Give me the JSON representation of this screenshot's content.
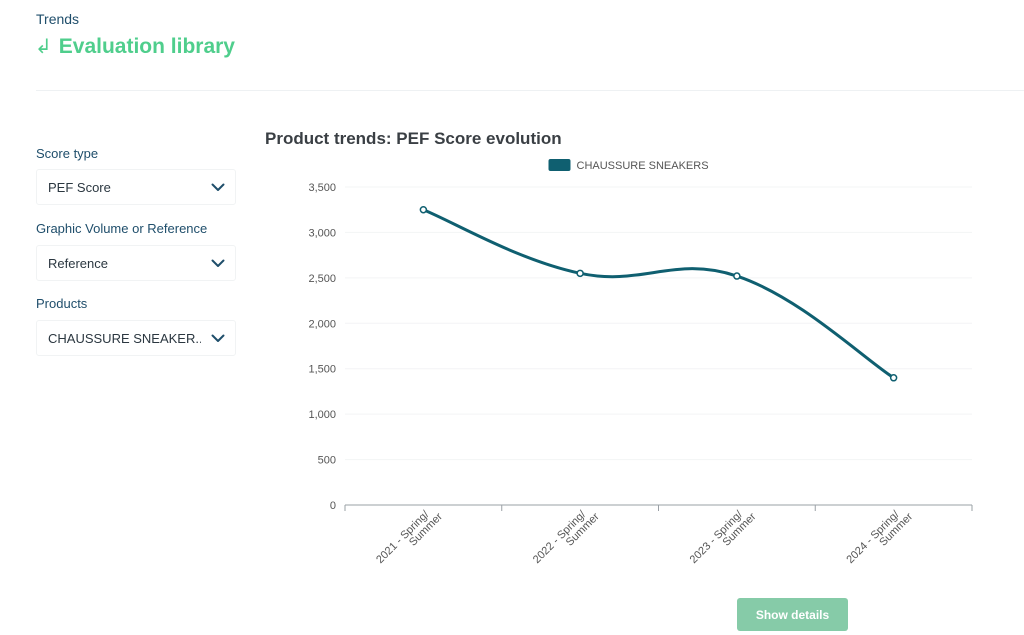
{
  "header": {
    "breadcrumb": "Trends",
    "back_link_label": "Evaluation library",
    "back_icon": "return-arrow-icon"
  },
  "filters": [
    {
      "label": "Score type",
      "value": "PEF Score"
    },
    {
      "label": "Graphic Volume or Reference",
      "value": "Reference"
    },
    {
      "label": "Products",
      "value": "CHAUSSURE SNEAKER..."
    }
  ],
  "chart_data": {
    "type": "line",
    "title": "Product trends: PEF Score evolution",
    "categories": [
      "2021 - Spring/Summer",
      "2022 - Spring/Summer",
      "2023 - Spring/Summer",
      "2024 - Spring/Summer"
    ],
    "series": [
      {
        "name": "CHAUSSURE SNEAKERS",
        "color": "#0f5f70",
        "values": [
          3250,
          2550,
          2520,
          1400
        ]
      }
    ],
    "yticks": [
      0,
      500,
      1000,
      1500,
      2000,
      2500,
      3000,
      3500
    ],
    "ytick_labels": [
      "0",
      "500",
      "1,000",
      "1,500",
      "2,000",
      "2,500",
      "3,000",
      "3,500"
    ],
    "ylim": [
      0,
      3500
    ],
    "xlabel": "",
    "ylabel": "",
    "grid": true,
    "legend_position": "top-center",
    "smooth": true
  },
  "actions": {
    "show_details_label": "Show details"
  },
  "colors": {
    "accent": "#4fce8c",
    "label": "#1f4e6b",
    "series": "#0f5f70",
    "button": "#86cba8"
  }
}
